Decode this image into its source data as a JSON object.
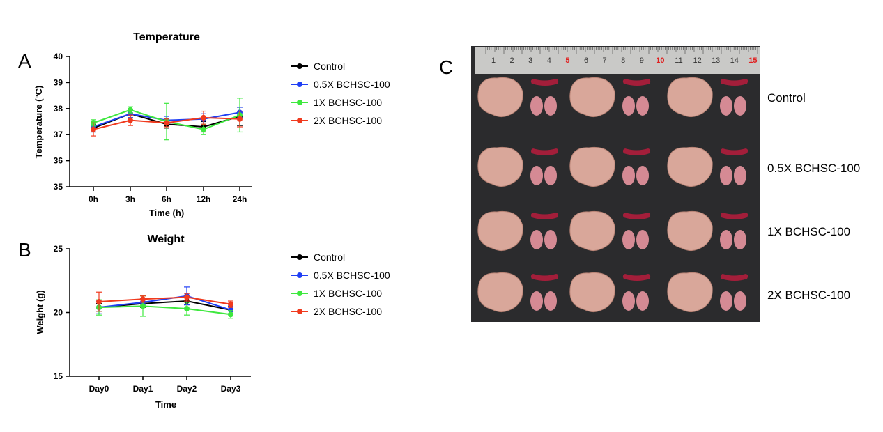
{
  "panels": {
    "a": "A",
    "b": "B",
    "c": "C"
  },
  "chart_data": [
    {
      "type": "line",
      "title": "Temperature",
      "xlabel": "Time (h)",
      "ylabel": "Temperature (°C)",
      "categories": [
        "0h",
        "3h",
        "6h",
        "12h",
        "24h"
      ],
      "ylim": [
        35,
        40
      ],
      "yticks": [
        35,
        36,
        37,
        38,
        39,
        40
      ],
      "series": [
        {
          "name": "Control",
          "color": "#000000",
          "values": [
            37.25,
            37.8,
            37.4,
            37.3,
            37.7
          ],
          "errors": [
            0.15,
            0.15,
            0.15,
            0.2,
            0.35
          ]
        },
        {
          "name": "0.5X BCHSC-100",
          "color": "#1f3ff5",
          "values": [
            37.3,
            37.8,
            37.55,
            37.6,
            37.85
          ],
          "errors": [
            0.2,
            0.15,
            0.15,
            0.2,
            0.2
          ]
        },
        {
          "name": "1X BCHSC-100",
          "color": "#3ee83e",
          "values": [
            37.45,
            37.95,
            37.5,
            37.2,
            37.75
          ],
          "errors": [
            0.12,
            0.12,
            0.7,
            0.2,
            0.65
          ]
        },
        {
          "name": "2X BCHSC-100",
          "color": "#f03a1e",
          "values": [
            37.2,
            37.55,
            37.45,
            37.65,
            37.6
          ],
          "errors": [
            0.25,
            0.2,
            0.15,
            0.25,
            0.3
          ]
        }
      ]
    },
    {
      "type": "line",
      "title": "Weight",
      "xlabel": "Time",
      "ylabel": "Weight  (g)",
      "categories": [
        "Day0",
        "Day1",
        "Day2",
        "Day3"
      ],
      "ylim": [
        15,
        25
      ],
      "yticks": [
        15,
        20,
        25
      ],
      "series": [
        {
          "name": "Control",
          "color": "#000000",
          "values": [
            20.4,
            20.7,
            20.9,
            20.2
          ],
          "errors": [
            0.3,
            0.3,
            0.3,
            0.3
          ]
        },
        {
          "name": "0.5X BCHSC-100",
          "color": "#1f3ff5",
          "values": [
            20.4,
            20.8,
            21.3,
            20.2
          ],
          "errors": [
            0.5,
            0.3,
            0.7,
            0.3
          ]
        },
        {
          "name": "1X BCHSC-100",
          "color": "#3ee83e",
          "values": [
            20.4,
            20.5,
            20.3,
            19.85
          ],
          "errors": [
            0.6,
            0.8,
            0.5,
            0.3
          ]
        },
        {
          "name": "2X BCHSC-100",
          "color": "#f03a1e",
          "values": [
            20.85,
            21.05,
            21.2,
            20.65
          ],
          "errors": [
            0.75,
            0.25,
            0.3,
            0.25
          ]
        }
      ]
    }
  ],
  "photo": {
    "ruler_numbers": [
      "1",
      "2",
      "3",
      "4",
      "5",
      "6",
      "7",
      "8",
      "9",
      "10",
      "11",
      "12",
      "13",
      "14",
      "15"
    ],
    "ruler_red_numbers": [
      "5",
      "10",
      "15"
    ],
    "row_labels": [
      "Control",
      "0.5X BCHSC-100",
      "1X BCHSC-100",
      "2X BCHSC-100"
    ],
    "colors": {
      "background": "#2b2b2d",
      "ruler": "#c9c9c7",
      "liver": "#d9a79a",
      "spleen": "#a31e3a",
      "kidney": "#d58a94",
      "ruler_red": "#e02020"
    }
  }
}
